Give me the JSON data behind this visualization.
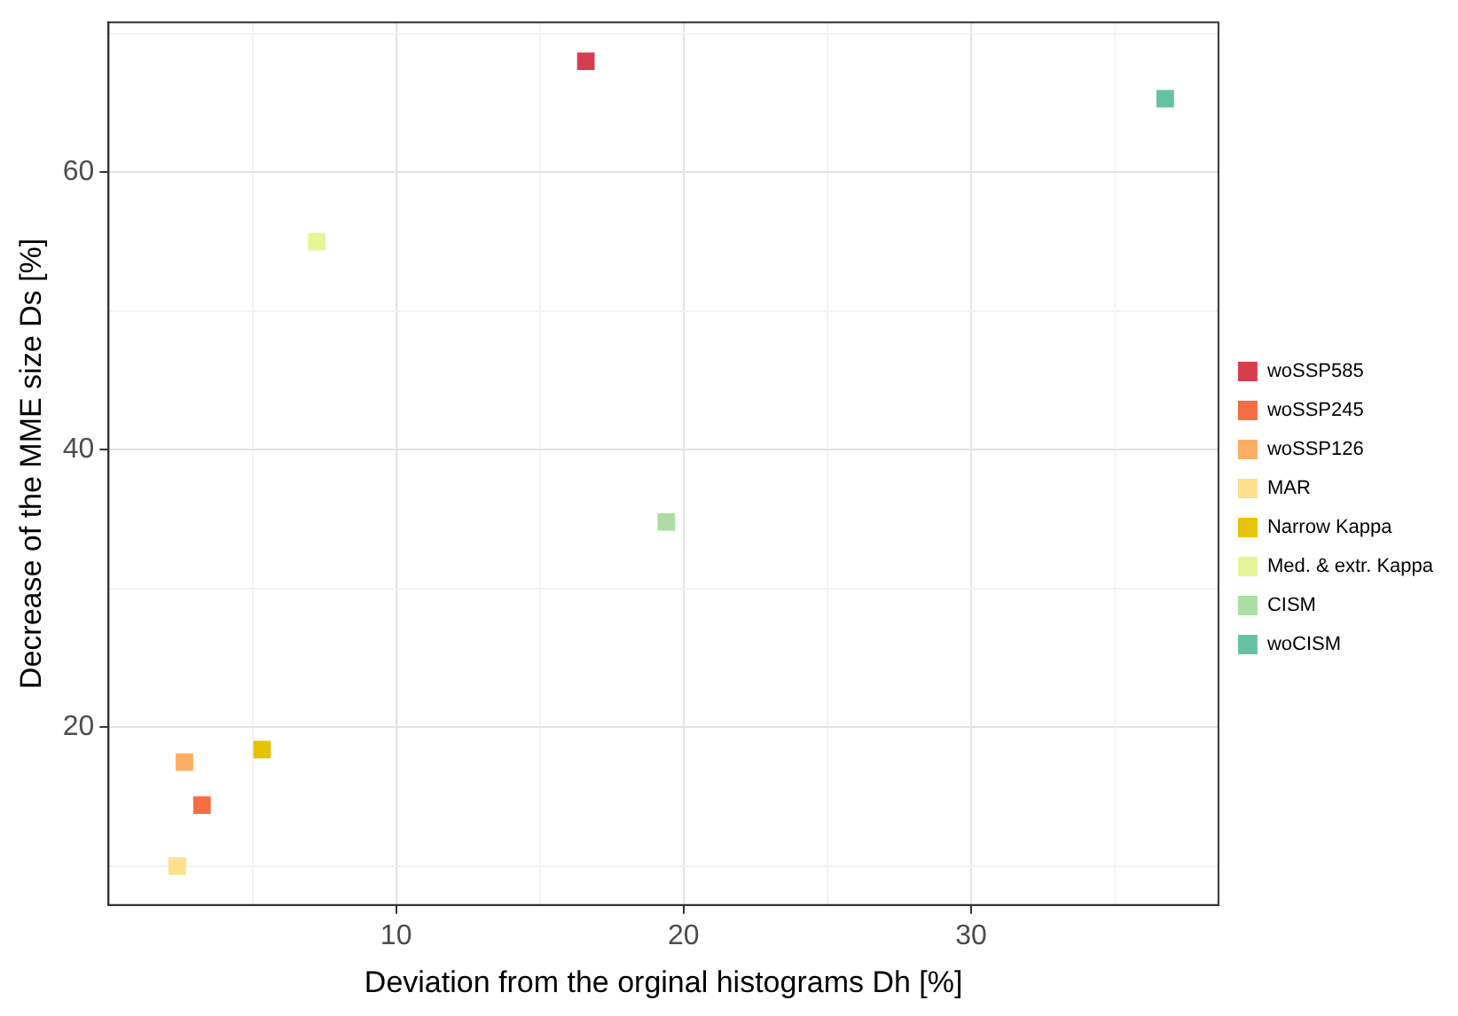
{
  "chart_data": {
    "type": "scatter",
    "xlabel": "Deviation from the orginal histograms Dh [%]",
    "ylabel": "Decrease of the MME size Ds [%]",
    "xlim": [
      0,
      38.6
    ],
    "ylim": [
      7.2,
      70.8
    ],
    "xticks": [
      {
        "value": 5,
        "label": null
      },
      10,
      {
        "value": 15,
        "label": null
      },
      20,
      {
        "value": 25,
        "label": null
      },
      30,
      {
        "value": 35,
        "label": null
      }
    ],
    "yticks": [
      {
        "value": 10,
        "label": null
      },
      20,
      {
        "value": 30,
        "label": null
      },
      40,
      {
        "value": 50,
        "label": null
      },
      60,
      {
        "value": 70,
        "label": null
      }
    ],
    "grid": true,
    "legend": "right",
    "marker": "square",
    "series": [
      {
        "name": "woSSP585",
        "color": "#d53e4f",
        "x": [
          16.6
        ],
        "values": [
          68.0
        ]
      },
      {
        "name": "woSSP245",
        "color": "#f46d43",
        "x": [
          3.25
        ],
        "values": [
          14.4
        ]
      },
      {
        "name": "woSSP126",
        "color": "#fdae61",
        "x": [
          2.64
        ],
        "values": [
          17.5
        ]
      },
      {
        "name": "MAR",
        "color": "#fee08b",
        "x": [
          2.39
        ],
        "values": [
          10.0
        ]
      },
      {
        "name": "Narrow Kappa",
        "color": "#e6c200",
        "x": [
          5.34
        ],
        "values": [
          18.4
        ]
      },
      {
        "name": "Med. & extr. Kappa",
        "color": "#e6f598",
        "x": [
          7.24
        ],
        "values": [
          55.0
        ]
      },
      {
        "name": "CISM",
        "color": "#abdda4",
        "x": [
          19.4
        ],
        "values": [
          34.8
        ]
      },
      {
        "name": "woCISM",
        "color": "#66c2a5",
        "x": [
          36.75
        ],
        "values": [
          65.3
        ]
      }
    ]
  }
}
